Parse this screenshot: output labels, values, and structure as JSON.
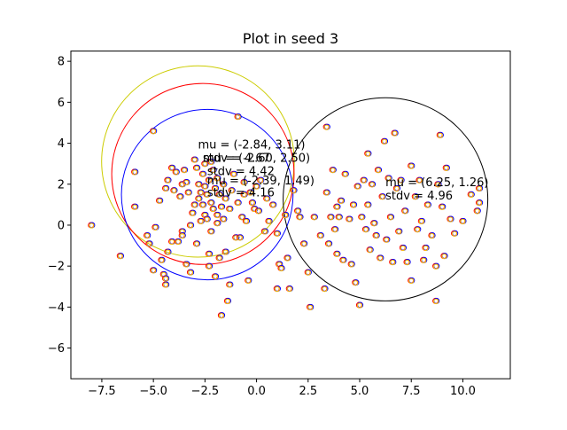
{
  "chart_data": {
    "type": "scatter",
    "title": "Plot in seed 3",
    "xlabel": "",
    "ylabel": "",
    "xlim": [
      -9.0,
      12.3
    ],
    "ylim": [
      -7.5,
      8.5
    ],
    "xticks": [
      -7.5,
      -5.0,
      -2.5,
      0.0,
      2.5,
      5.0,
      7.5,
      10.0
    ],
    "xtick_labels": [
      "−7.5",
      "−5.0",
      "−2.5",
      "0.0",
      "2.5",
      "5.0",
      "7.5",
      "10.0"
    ],
    "yticks": [
      -6,
      -4,
      -2,
      0,
      2,
      4,
      6,
      8
    ],
    "ytick_labels": [
      "−6",
      "−4",
      "−2",
      "0",
      "2",
      "4",
      "6",
      "8"
    ],
    "grid": false,
    "marker_colors": [
      "#ff0000",
      "#0000ff",
      "#ffcc00"
    ],
    "points": [
      [
        -8.0,
        0.0
      ],
      [
        -6.6,
        -1.5
      ],
      [
        -5.9,
        2.6
      ],
      [
        -5.9,
        0.9
      ],
      [
        -5.3,
        -0.5
      ],
      [
        -5.2,
        -0.9
      ],
      [
        -5.0,
        4.6
      ],
      [
        -5.0,
        -2.2
      ],
      [
        -4.9,
        -0.1
      ],
      [
        -4.7,
        1.2
      ],
      [
        -4.6,
        -1.7
      ],
      [
        -4.5,
        -2.4
      ],
      [
        -4.4,
        -2.6
      ],
      [
        -4.4,
        -2.9
      ],
      [
        -4.4,
        1.8
      ],
      [
        -4.3,
        2.2
      ],
      [
        -4.3,
        -1.3
      ],
      [
        -4.1,
        -0.8
      ],
      [
        -4.1,
        2.8
      ],
      [
        -4.0,
        1.7
      ],
      [
        -3.9,
        2.6
      ],
      [
        -3.8,
        -0.8
      ],
      [
        -3.7,
        1.4
      ],
      [
        -3.6,
        -0.3
      ],
      [
        -3.6,
        -0.5
      ],
      [
        -3.6,
        2.0
      ],
      [
        -3.5,
        2.7
      ],
      [
        -3.4,
        2.1
      ],
      [
        -3.4,
        -1.9
      ],
      [
        -3.3,
        1.6
      ],
      [
        -3.2,
        0.0
      ],
      [
        -3.2,
        -2.3
      ],
      [
        -3.1,
        0.6
      ],
      [
        -3.0,
        3.2
      ],
      [
        -3.0,
        1.0
      ],
      [
        -2.9,
        2.8
      ],
      [
        -2.9,
        -0.9
      ],
      [
        -2.8,
        1.3
      ],
      [
        -2.8,
        2.0
      ],
      [
        -2.7,
        1.6
      ],
      [
        -2.7,
        0.2
      ],
      [
        -2.6,
        2.5
      ],
      [
        -2.6,
        1.0
      ],
      [
        -2.5,
        3.0
      ],
      [
        -2.5,
        1.9
      ],
      [
        -2.5,
        0.5
      ],
      [
        -2.4,
        1.5
      ],
      [
        -2.4,
        0.3
      ],
      [
        -2.3,
        2.2
      ],
      [
        -2.3,
        -1.4
      ],
      [
        -2.3,
        -2.0
      ],
      [
        -2.2,
        3.1
      ],
      [
        -2.2,
        1.1
      ],
      [
        -2.2,
        -0.3
      ],
      [
        -2.1,
        2.7
      ],
      [
        -2.1,
        0.8
      ],
      [
        -2.0,
        1.8
      ],
      [
        -2.0,
        -2.5
      ],
      [
        -1.9,
        2.3
      ],
      [
        -1.9,
        0.1
      ],
      [
        -1.9,
        0.5
      ],
      [
        -1.8,
        1.5
      ],
      [
        -1.8,
        -1.6
      ],
      [
        -1.7,
        0.9
      ],
      [
        -1.7,
        -4.4
      ],
      [
        -1.6,
        2.0
      ],
      [
        -1.6,
        0.3
      ],
      [
        -1.5,
        1.3
      ],
      [
        -1.5,
        -1.3
      ],
      [
        -1.4,
        -3.7
      ],
      [
        -1.3,
        0.8
      ],
      [
        -1.3,
        -2.9
      ],
      [
        -1.2,
        1.7
      ],
      [
        -1.1,
        2.5
      ],
      [
        -1.0,
        -0.6
      ],
      [
        -0.9,
        5.3
      ],
      [
        -0.9,
        1.1
      ],
      [
        -0.8,
        -0.6
      ],
      [
        -0.7,
        0.4
      ],
      [
        -0.6,
        2.1
      ],
      [
        -0.6,
        1.5
      ],
      [
        -0.5,
        0.2
      ],
      [
        -0.4,
        -2.7
      ],
      [
        -0.3,
        1.6
      ],
      [
        -0.2,
        1.1
      ],
      [
        -0.1,
        0.8
      ],
      [
        0.0,
        1.9
      ],
      [
        0.1,
        0.7
      ],
      [
        0.2,
        2.2
      ],
      [
        0.4,
        -0.3
      ],
      [
        0.5,
        1.3
      ],
      [
        0.6,
        0.2
      ],
      [
        0.8,
        1.0
      ],
      [
        1.0,
        -0.4
      ],
      [
        1.0,
        -3.1
      ],
      [
        1.1,
        -1.9
      ],
      [
        1.2,
        -2.1
      ],
      [
        1.4,
        0.5
      ],
      [
        1.5,
        -1.6
      ],
      [
        1.6,
        -3.1
      ],
      [
        1.8,
        1.7
      ],
      [
        2.0,
        0.7
      ],
      [
        2.1,
        0.4
      ],
      [
        2.3,
        -0.9
      ],
      [
        2.5,
        -2.3
      ],
      [
        2.6,
        -4.0
      ],
      [
        2.8,
        0.4
      ],
      [
        3.1,
        -0.5
      ],
      [
        3.3,
        -3.1
      ],
      [
        3.4,
        4.8
      ],
      [
        3.4,
        1.6
      ],
      [
        3.5,
        -0.9
      ],
      [
        3.6,
        0.4
      ],
      [
        3.7,
        2.7
      ],
      [
        3.8,
        -0.2
      ],
      [
        3.9,
        0.9
      ],
      [
        3.9,
        -1.4
      ],
      [
        4.0,
        0.4
      ],
      [
        4.1,
        1.2
      ],
      [
        4.2,
        -1.7
      ],
      [
        4.3,
        2.5
      ],
      [
        4.5,
        0.3
      ],
      [
        4.6,
        -1.9
      ],
      [
        4.7,
        1.0
      ],
      [
        4.8,
        -2.8
      ],
      [
        4.9,
        1.9
      ],
      [
        5.0,
        -3.9
      ],
      [
        5.1,
        0.4
      ],
      [
        5.2,
        2.2
      ],
      [
        5.3,
        -0.2
      ],
      [
        5.4,
        3.5
      ],
      [
        5.4,
        1.0
      ],
      [
        5.5,
        -1.2
      ],
      [
        5.6,
        2.0
      ],
      [
        5.7,
        0.1
      ],
      [
        5.8,
        -0.5
      ],
      [
        5.9,
        2.7
      ],
      [
        6.0,
        -1.6
      ],
      [
        6.1,
        1.4
      ],
      [
        6.2,
        4.1
      ],
      [
        6.3,
        -0.7
      ],
      [
        6.4,
        2.3
      ],
      [
        6.5,
        0.4
      ],
      [
        6.6,
        -1.8
      ],
      [
        6.7,
        4.5
      ],
      [
        6.8,
        1.8
      ],
      [
        6.9,
        -0.3
      ],
      [
        7.0,
        2.2
      ],
      [
        7.1,
        -1.1
      ],
      [
        7.2,
        0.7
      ],
      [
        7.3,
        -1.8
      ],
      [
        7.5,
        2.9
      ],
      [
        7.5,
        -2.7
      ],
      [
        7.7,
        1.4
      ],
      [
        7.8,
        -0.2
      ],
      [
        7.9,
        2.2
      ],
      [
        8.0,
        0.2
      ],
      [
        8.1,
        -1.7
      ],
      [
        8.2,
        -1.1
      ],
      [
        8.3,
        1.0
      ],
      [
        8.5,
        -0.5
      ],
      [
        8.7,
        -2.0
      ],
      [
        8.7,
        -3.7
      ],
      [
        8.8,
        2.0
      ],
      [
        8.9,
        4.4
      ],
      [
        9.0,
        0.9
      ],
      [
        9.1,
        -1.5
      ],
      [
        9.2,
        2.8
      ],
      [
        9.4,
        0.3
      ],
      [
        9.6,
        -0.4
      ],
      [
        10.0,
        0.2
      ],
      [
        10.4,
        1.5
      ],
      [
        10.7,
        0.7
      ],
      [
        10.8,
        1.8
      ],
      [
        10.8,
        1.1
      ]
    ],
    "circles": [
      {
        "cx": -2.84,
        "cy": 3.11,
        "r": 4.67,
        "color": "#cccc00"
      },
      {
        "cx": -2.6,
        "cy": 2.5,
        "r": 4.42,
        "color": "#ff0000"
      },
      {
        "cx": -2.39,
        "cy": 1.49,
        "r": 4.16,
        "color": "#0000ff"
      },
      {
        "cx": 6.25,
        "cy": 1.26,
        "r": 4.96,
        "color": "#000000"
      }
    ],
    "annotations": [
      {
        "text": "mu = (-2.84, 3.11)",
        "x": -2.84,
        "y": 3.75
      },
      {
        "text": "stdv = 4.67",
        "x": -2.6,
        "y": 3.1
      },
      {
        "text": "mu = (-2.60, 2.50)",
        "x": -2.6,
        "y": 3.1
      },
      {
        "text": "stdv = 4.42",
        "x": -2.39,
        "y": 2.45
      },
      {
        "text": "mu = (-2.39, 1.49)",
        "x": -2.39,
        "y": 2.0
      },
      {
        "text": "stdv = 4.16",
        "x": -2.39,
        "y": 1.4
      },
      {
        "text": "mu = (6.25, 1.26)",
        "x": 6.25,
        "y": 1.9
      },
      {
        "text": "stdv = 4.96",
        "x": 6.25,
        "y": 1.25
      }
    ]
  }
}
